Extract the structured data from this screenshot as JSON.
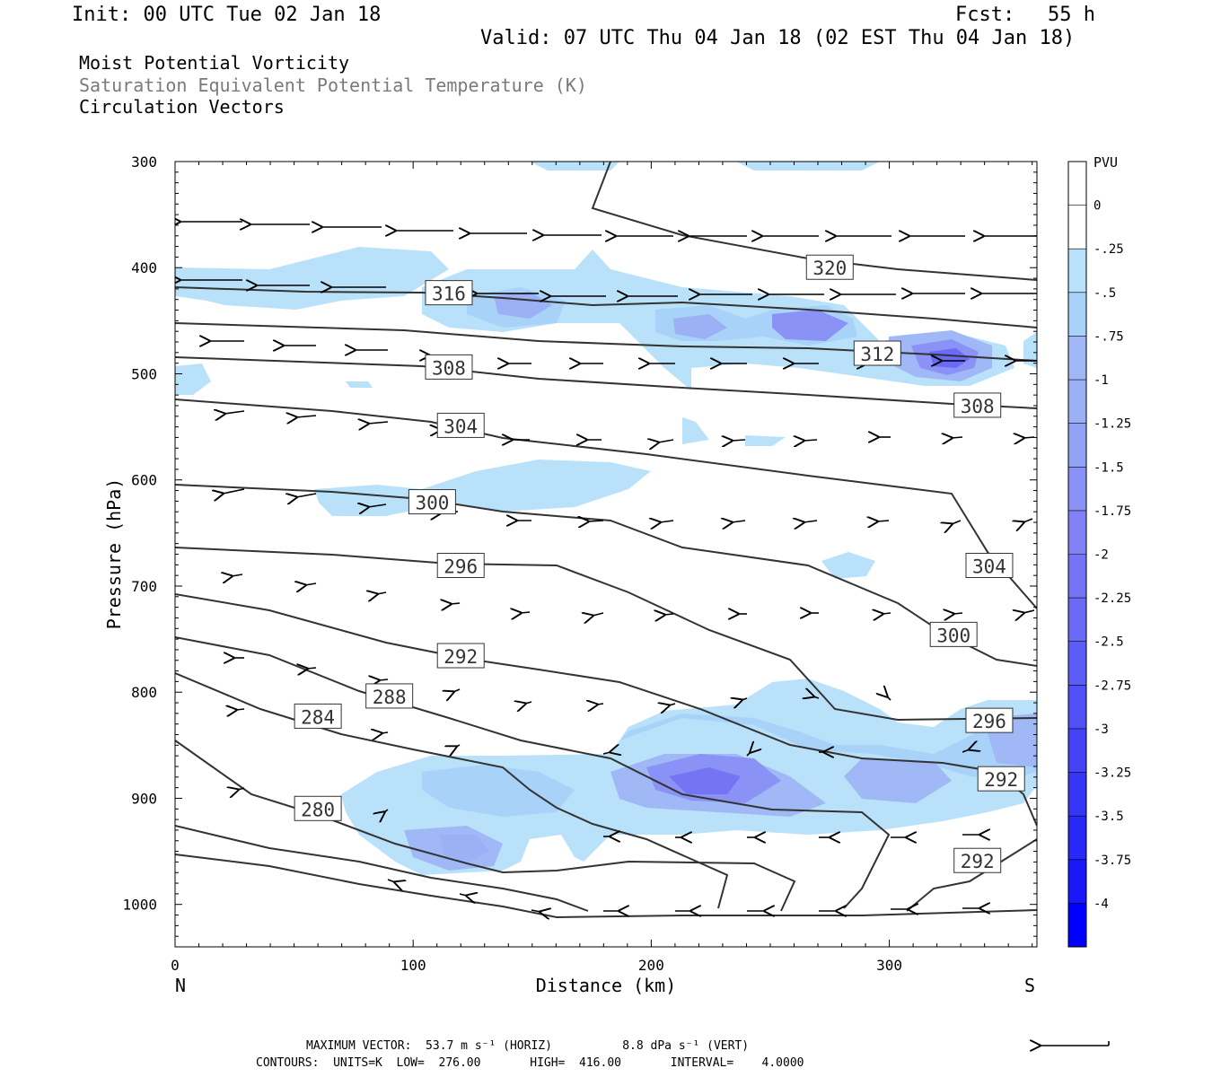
{
  "header": {
    "init": "Init: 00 UTC Tue 02 Jan 18",
    "fcst_label": "Fcst:",
    "fcst_value": "55 h",
    "valid": "Valid: 07 UTC Thu 04 Jan 18 (02 EST Thu 04 Jan 18)",
    "title1": "Moist Potential Vorticity",
    "title2": "Saturation Equivalent Potential Temperature (K)",
    "title3": "Circulation Vectors"
  },
  "footer": {
    "max_vector": "MAXIMUM VECTOR:  53.7 m s⁻¹ (HORIZ)          8.8 dPa s⁻¹ (VERT)",
    "contours": "CONTOURS:  UNITS=K  LOW=  276.00       HIGH=  416.00       INTERVAL=    4.0000"
  },
  "chart_data": {
    "type": "contour",
    "xlabel": "Distance (km)",
    "ylabel": "Pressure (hPa)",
    "xlim": [
      0,
      362
    ],
    "ylim": [
      1040,
      300
    ],
    "x_ticks": [
      "0",
      "100",
      "200",
      "300"
    ],
    "y_ticks": [
      "300",
      "400",
      "500",
      "600",
      "700",
      "800",
      "900",
      "1000"
    ],
    "x_left_label": "N",
    "x_right_label": "S",
    "colorbar": {
      "title": "PVU",
      "labels": [
        "0",
        "-.25",
        "-.5",
        "-.75",
        "-1",
        "-1.25",
        "-1.5",
        "-1.75",
        "-2",
        "-2.25",
        "-2.5",
        "-2.75",
        "-3",
        "-3.25",
        "-3.5",
        "-3.75",
        "-4"
      ],
      "colors": [
        "#ffffff",
        "#ffffff",
        "#b9e2fa",
        "#a8d2f8",
        "#a0b8f5",
        "#9cb0f5",
        "#92a2f5",
        "#8a92f6",
        "#8282f6",
        "#7474f5",
        "#6a6af6",
        "#5c5cf6",
        "#5050f6",
        "#4444f6",
        "#3636f7",
        "#2828f7",
        "#1818f8",
        "#0000ff"
      ]
    },
    "contour_labels": [
      {
        "text": "320",
        "x": 275,
        "p": 400
      },
      {
        "text": "316",
        "x": 115,
        "p": 424
      },
      {
        "text": "312",
        "x": 295,
        "p": 481
      },
      {
        "text": "308",
        "x": 115,
        "p": 494
      },
      {
        "text": "308",
        "x": 337,
        "p": 530
      },
      {
        "text": "304",
        "x": 120,
        "p": 549
      },
      {
        "text": "300",
        "x": 108,
        "p": 621
      },
      {
        "text": "296",
        "x": 120,
        "p": 681
      },
      {
        "text": "304",
        "x": 342,
        "p": 681
      },
      {
        "text": "300",
        "x": 327,
        "p": 746
      },
      {
        "text": "292",
        "x": 120,
        "p": 766
      },
      {
        "text": "288",
        "x": 90,
        "p": 804
      },
      {
        "text": "284",
        "x": 60,
        "p": 823
      },
      {
        "text": "296",
        "x": 342,
        "p": 827
      },
      {
        "text": "292",
        "x": 347,
        "p": 882
      },
      {
        "text": "280",
        "x": 60,
        "p": 910
      },
      {
        "text": "292",
        "x": 337,
        "p": 959
      }
    ],
    "max_vector_horiz": "53.7 m s-1",
    "max_vector_vert": "8.8 dPa s-1",
    "contour_low": 276.0,
    "contour_high": 416.0,
    "contour_interval": 4.0,
    "grid": false
  }
}
